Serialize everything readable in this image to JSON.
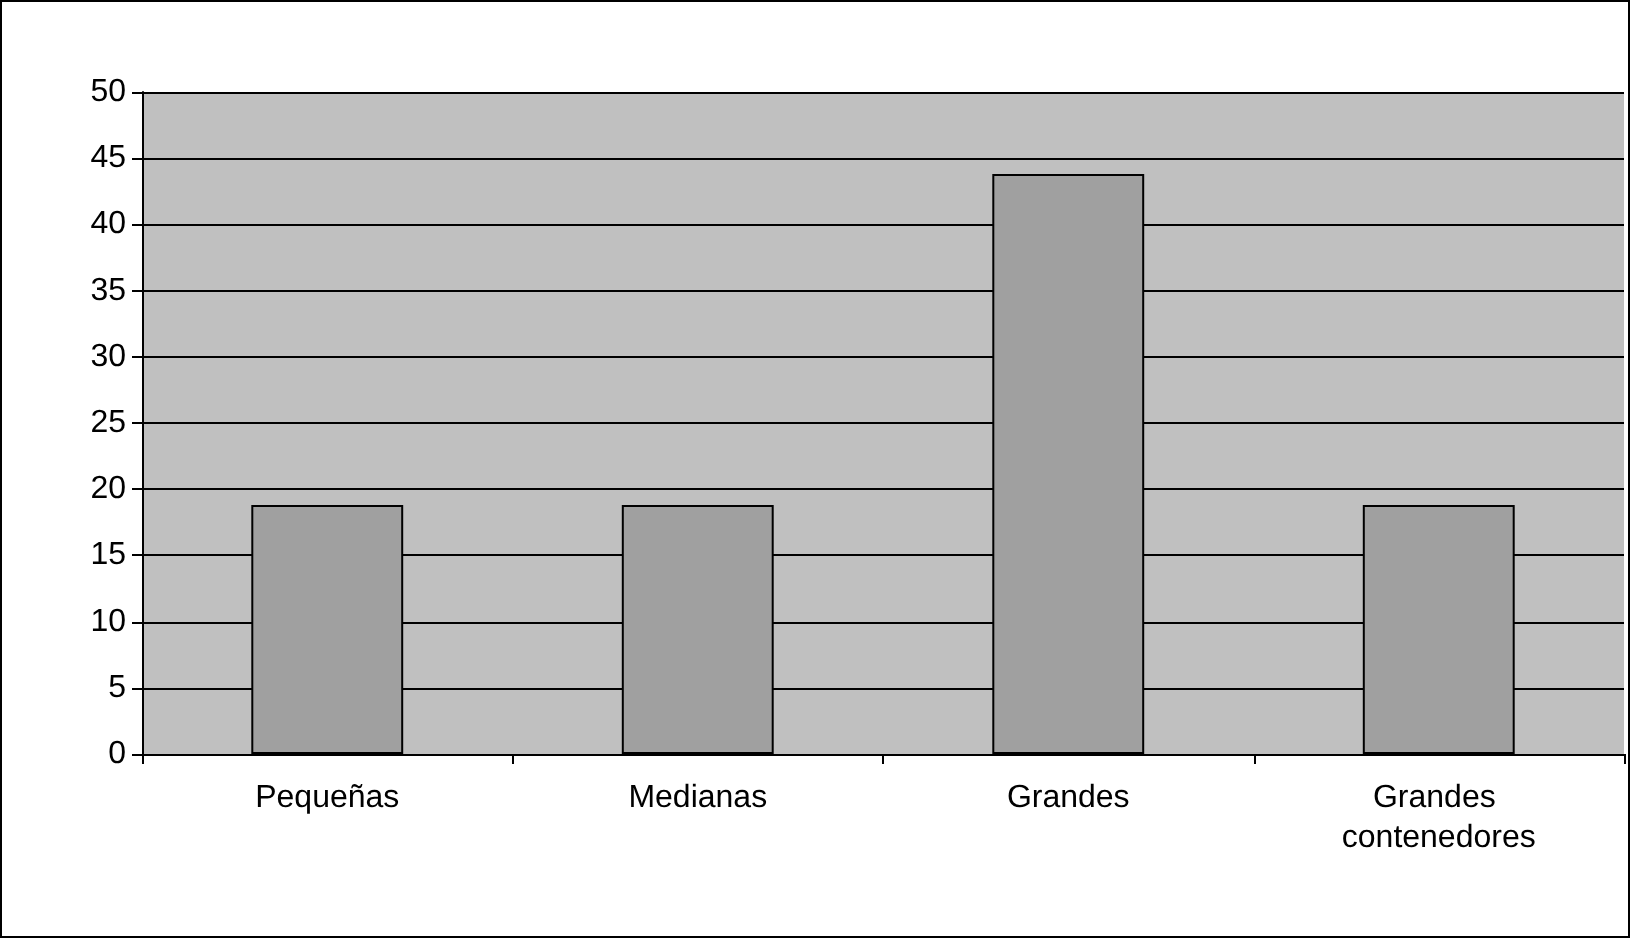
{
  "chart_data": {
    "type": "bar",
    "categories": [
      "Pequeñas",
      "Medianas",
      "Grandes",
      "Grandes contenedores"
    ],
    "values": [
      18.8,
      18.8,
      43.8,
      18.8
    ],
    "color": "#a0a0a0",
    "ylim": [
      0,
      50
    ],
    "yticks": [
      0,
      5,
      10,
      15,
      20,
      25,
      30,
      35,
      40,
      45,
      50
    ],
    "grid": "y"
  }
}
